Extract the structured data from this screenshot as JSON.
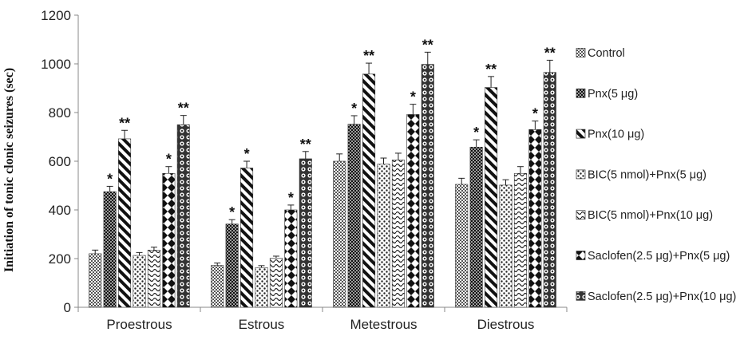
{
  "chart_data": {
    "type": "bar",
    "title": "",
    "xlabel": "",
    "ylabel": "Initiation of tonic clonic seizures (sec)",
    "ylim": [
      0,
      1200
    ],
    "yticks": [
      "0",
      "200",
      "400",
      "600",
      "800",
      "1000",
      "1200"
    ],
    "categories": [
      "Proestrous",
      "Estrous",
      "Metestrous",
      "Diestrous"
    ],
    "legend_position": "right",
    "series": [
      {
        "name": "Control",
        "pattern": "checker",
        "values": [
          220,
          172,
          600,
          505
        ],
        "errors": [
          15,
          10,
          30,
          25
        ],
        "sig": [
          "",
          "",
          "",
          ""
        ]
      },
      {
        "name": "Pnx(5 μg)",
        "pattern": "dots-dense",
        "values": [
          475,
          342,
          752,
          658
        ],
        "errors": [
          22,
          18,
          35,
          30
        ],
        "sig": [
          "*",
          "*",
          "*",
          "*"
        ]
      },
      {
        "name": "Pnx(10 μg)",
        "pattern": "diagonal",
        "values": [
          692,
          572,
          958,
          903
        ],
        "errors": [
          35,
          28,
          45,
          45
        ],
        "sig": [
          "**",
          "*",
          "**",
          "**"
        ]
      },
      {
        "name": "BIC(5 nmol)+Pnx(5 μg)",
        "pattern": "dots-sparse",
        "values": [
          213,
          163,
          588,
          502
        ],
        "errors": [
          12,
          8,
          25,
          22
        ],
        "sig": [
          "",
          "",
          "",
          ""
        ]
      },
      {
        "name": "BIC(5 nmol)+Pnx(10 μg)",
        "pattern": "waves",
        "values": [
          235,
          202,
          605,
          550
        ],
        "errors": [
          12,
          8,
          28,
          28
        ],
        "sig": [
          "",
          "",
          "",
          ""
        ]
      },
      {
        "name": "Saclofen(2.5 μg)+Pnx(5 μg)",
        "pattern": "diamonds",
        "values": [
          550,
          400,
          792,
          730
        ],
        "errors": [
          28,
          20,
          42,
          35
        ],
        "sig": [
          "*",
          "*",
          "*",
          "*"
        ]
      },
      {
        "name": "Saclofen(2.5 μg)+Pnx(10 μg)",
        "pattern": "circles",
        "values": [
          750,
          610,
          998,
          965
        ],
        "errors": [
          38,
          30,
          50,
          50
        ],
        "sig": [
          "**",
          "**",
          "**",
          "**"
        ]
      }
    ]
  }
}
